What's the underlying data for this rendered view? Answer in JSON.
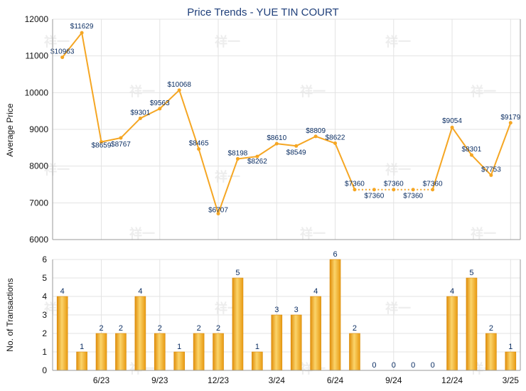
{
  "chart_data": [
    {
      "type": "line",
      "title": "Price Trends - YUE TIN COURT",
      "ylabel": "Average Price",
      "ylim": [
        6000,
        12000
      ],
      "yticks": [
        6000,
        7000,
        8000,
        9000,
        10000,
        11000,
        12000
      ],
      "color": "#f5a623",
      "grid": true,
      "points": [
        {
          "label": "$10963",
          "value": 10963
        },
        {
          "label": "$11629",
          "value": 11629
        },
        {
          "label": "$8659",
          "value": 8659
        },
        {
          "label": "$8767",
          "value": 8767
        },
        {
          "label": "$9301",
          "value": 9301
        },
        {
          "label": "$9563",
          "value": 9563
        },
        {
          "label": "$10068",
          "value": 10068
        },
        {
          "label": "$8465",
          "value": 8465
        },
        {
          "label": "$6707",
          "value": 6707
        },
        {
          "label": "$8198",
          "value": 8198
        },
        {
          "label": "$8262",
          "value": 8262
        },
        {
          "label": "$8610",
          "value": 8610
        },
        {
          "label": "$8549",
          "value": 8549
        },
        {
          "label": "$8809",
          "value": 8809
        },
        {
          "label": "$8622",
          "value": 8622
        },
        {
          "label": "$7360",
          "value": 7360
        },
        {
          "label": "$7360",
          "value": 7360
        },
        {
          "label": "$7360",
          "value": 7360
        },
        {
          "label": "$7360",
          "value": 7360
        },
        {
          "label": "$7360",
          "value": 7360
        },
        {
          "label": "$9054",
          "value": 9054
        },
        {
          "label": "$8301",
          "value": 8301
        },
        {
          "label": "$7753",
          "value": 7753
        },
        {
          "label": "$9179",
          "value": 9179
        }
      ],
      "dotted_segments": [
        [
          15,
          16
        ],
        [
          16,
          17
        ],
        [
          17,
          18
        ],
        [
          18,
          19
        ]
      ]
    },
    {
      "type": "bar",
      "ylabel": "No. of Transactions",
      "ylim": [
        0,
        6
      ],
      "yticks": [
        0,
        1,
        2,
        3,
        4,
        5,
        6
      ],
      "xticks": [
        {
          "label": "6/23",
          "index": 2
        },
        {
          "label": "9/23",
          "index": 5
        },
        {
          "label": "12/23",
          "index": 8
        },
        {
          "label": "3/24",
          "index": 11
        },
        {
          "label": "6/24",
          "index": 14
        },
        {
          "label": "9/24",
          "index": 17
        },
        {
          "label": "12/24",
          "index": 20
        },
        {
          "label": "3/25",
          "index": 23
        }
      ],
      "values": [
        4,
        1,
        2,
        2,
        4,
        2,
        1,
        2,
        2,
        5,
        1,
        3,
        3,
        4,
        6,
        2,
        0,
        0,
        0,
        0,
        4,
        5,
        2,
        1
      ],
      "color": "#f0a91e",
      "grid": true
    }
  ]
}
